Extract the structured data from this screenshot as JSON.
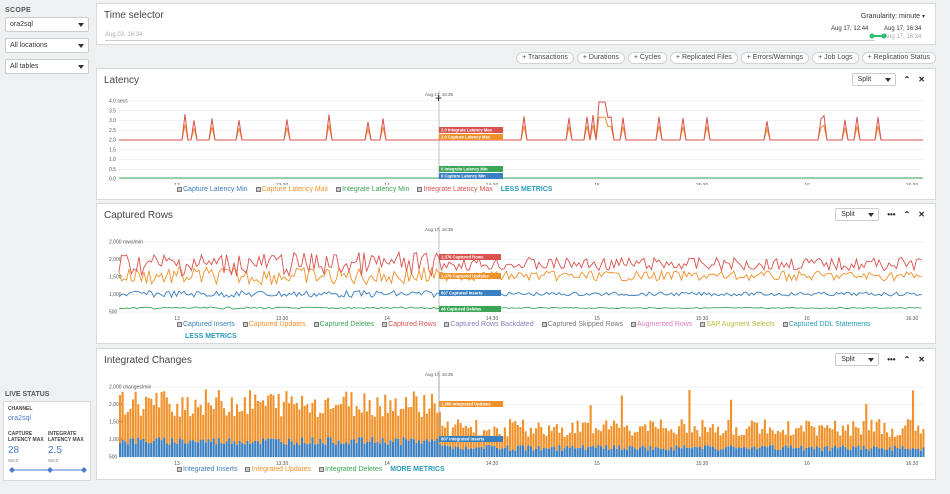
{
  "sidebar": {
    "scope_title": "SCOPE",
    "channel_select": "ora2sql",
    "locations_select": "All locations",
    "tables_select": "All tables",
    "live_status_title": "LIVE STATUS",
    "channel_label": "CHANNEL",
    "channel_value": "ora2sql",
    "capture_label_1": "CAPTURE",
    "capture_label_2": "LATENCY MAX",
    "capture_value": "28",
    "capture_unit": "secs",
    "integrate_label_1": "INTEGRATE",
    "integrate_label_2": "LATENCY MAX",
    "integrate_value": "2.5",
    "integrate_unit": "secs"
  },
  "time_selector": {
    "title": "Time selector",
    "granularity_label": "Granularity:",
    "granularity_value": "minute",
    "start_date": "Aug 03, 16:34",
    "range_start": "Aug 17, 12:44",
    "range_end": "Aug 17, 16:34",
    "range_end_shadow": "Aug 17, 16:34"
  },
  "toolbar": {
    "buttons": [
      "+ Transactions",
      "+ Durations",
      "+ Cycles",
      "+ Replicated Files",
      "+ Errors/Warnings",
      "+ Job Logs",
      "+ Replication Status"
    ]
  },
  "common": {
    "split_label": "Split",
    "more_icon": "•••",
    "collapse_icon": "⌃",
    "close_icon": "✕",
    "cursor_time": "Aug 17, 16:36",
    "x_ticks": [
      "13",
      "13:30",
      "14",
      "14:30",
      "15",
      "15:30",
      "16",
      "16:30"
    ]
  },
  "latency": {
    "title": "Latency",
    "y_unit": "4.0 secs",
    "y_ticks": [
      "4.0 secs",
      "3.5",
      "3.0",
      "2.5",
      "2.0",
      "1.5",
      "1.0",
      "0.5",
      "0.0"
    ],
    "tooltips": [
      "2.0 Integrate Latency Max",
      "2.0 Capture Latency Max",
      "0 Integrate Latency Min",
      "0 Capture Latency Min"
    ],
    "legend": [
      "Capture Latency Min",
      "Capture Latency Max",
      "Integrate Latency Min",
      "Integrate Latency Max"
    ],
    "less_metrics": "LESS METRICS"
  },
  "captured_rows": {
    "title": "Captured Rows",
    "y_ticks": [
      "2,000 rows/min",
      "2,000",
      "1,500",
      "1,000",
      "500"
    ],
    "tooltips": [
      "1,376 Captured Rows",
      "1,376 Captured Updates",
      "807 Captured Inserts",
      "48 Captured Deletes"
    ],
    "legend": [
      "Captured Inserts",
      "Captured Updates",
      "Captured Deletes",
      "Captured Rows",
      "Captured Rows Backdated",
      "Captured Skipped Rows",
      "Augmented Rows",
      "SAP Augment Selects",
      "Captured DDL Statements"
    ],
    "less_metrics": "LESS METRICS"
  },
  "integrated_changes": {
    "title": "Integrated Changes",
    "y_ticks": [
      "2,000 changes/min",
      "2,000",
      "1,500",
      "1,000",
      "500"
    ],
    "tooltips": [
      "1,359 Integrated Updates",
      "807 Integrated Inserts"
    ],
    "legend": [
      "Integrated Inserts",
      "Integrated Updates",
      "Integrated Deletes"
    ],
    "more_metrics": "MORE METRICS"
  },
  "colors": {
    "red": "#d9534f",
    "orange": "#f0922b",
    "green": "#3aa655",
    "blue": "#3a7fc0",
    "teal": "#2a9bb8",
    "accent_green": "#2fbf71"
  }
}
